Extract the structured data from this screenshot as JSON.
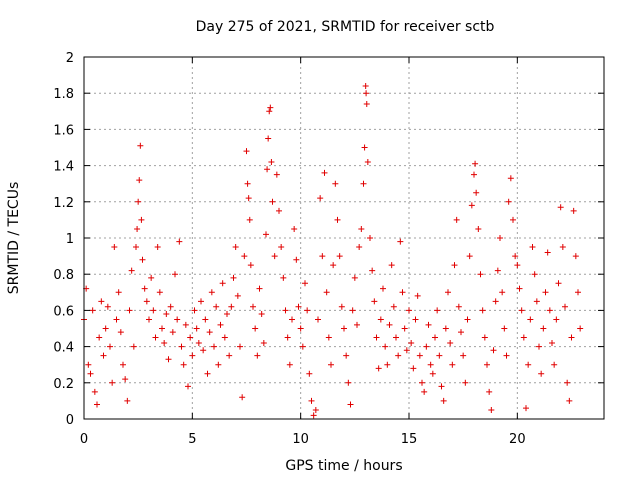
{
  "chart_data": {
    "type": "scatter",
    "title": "Day 275 of 2021, SRMTID for receiver sctb",
    "xlabel": "GPS time / hours",
    "ylabel": "SRMTID / TECUs",
    "xlim": [
      0,
      24
    ],
    "ylim": [
      0,
      2
    ],
    "xticks": [
      0,
      5,
      10,
      15,
      20
    ],
    "xtick_labels": [
      "0",
      "5",
      "10",
      "15",
      "20"
    ],
    "yticks": [
      0,
      0.2,
      0.4,
      0.6,
      0.8,
      1,
      1.2,
      1.4,
      1.6,
      1.8,
      2
    ],
    "ytick_labels": [
      "0",
      "0.2",
      "0.4",
      "0.6",
      "0.8",
      "1",
      "1.2",
      "1.4",
      "1.6",
      "1.8",
      "2"
    ],
    "grid": true,
    "marker": "+",
    "color": "#e00000",
    "series": [
      {
        "name": "sctb",
        "points": [
          [
            0.0,
            0.55
          ],
          [
            0.1,
            0.72
          ],
          [
            0.2,
            0.3
          ],
          [
            0.3,
            0.25
          ],
          [
            0.4,
            0.6
          ],
          [
            0.5,
            0.15
          ],
          [
            0.6,
            0.08
          ],
          [
            0.7,
            0.45
          ],
          [
            0.8,
            0.65
          ],
          [
            0.9,
            0.35
          ],
          [
            1.0,
            0.5
          ],
          [
            1.1,
            0.62
          ],
          [
            1.2,
            0.4
          ],
          [
            1.3,
            0.2
          ],
          [
            1.4,
            0.95
          ],
          [
            1.5,
            0.55
          ],
          [
            1.6,
            0.7
          ],
          [
            1.7,
            0.48
          ],
          [
            1.8,
            0.3
          ],
          [
            1.9,
            0.22
          ],
          [
            2.0,
            0.1
          ],
          [
            2.1,
            0.6
          ],
          [
            2.2,
            0.82
          ],
          [
            2.3,
            0.4
          ],
          [
            2.4,
            0.95
          ],
          [
            2.45,
            1.05
          ],
          [
            2.5,
            1.2
          ],
          [
            2.55,
            1.32
          ],
          [
            2.6,
            1.51
          ],
          [
            2.65,
            1.1
          ],
          [
            2.7,
            0.88
          ],
          [
            2.8,
            0.72
          ],
          [
            2.9,
            0.65
          ],
          [
            3.0,
            0.55
          ],
          [
            3.1,
            0.78
          ],
          [
            3.2,
            0.6
          ],
          [
            3.3,
            0.45
          ],
          [
            3.4,
            0.95
          ],
          [
            3.5,
            0.7
          ],
          [
            3.6,
            0.5
          ],
          [
            3.7,
            0.42
          ],
          [
            3.8,
            0.58
          ],
          [
            3.9,
            0.33
          ],
          [
            4.0,
            0.62
          ],
          [
            4.1,
            0.48
          ],
          [
            4.2,
            0.8
          ],
          [
            4.3,
            0.55
          ],
          [
            4.4,
            0.98
          ],
          [
            4.5,
            0.4
          ],
          [
            4.6,
            0.3
          ],
          [
            4.7,
            0.52
          ],
          [
            4.8,
            0.18
          ],
          [
            4.9,
            0.45
          ],
          [
            5.0,
            0.35
          ],
          [
            5.1,
            0.6
          ],
          [
            5.2,
            0.5
          ],
          [
            5.3,
            0.42
          ],
          [
            5.4,
            0.65
          ],
          [
            5.5,
            0.38
          ],
          [
            5.6,
            0.55
          ],
          [
            5.7,
            0.25
          ],
          [
            5.8,
            0.48
          ],
          [
            5.9,
            0.7
          ],
          [
            6.0,
            0.4
          ],
          [
            6.1,
            0.62
          ],
          [
            6.2,
            0.3
          ],
          [
            6.3,
            0.52
          ],
          [
            6.4,
            0.75
          ],
          [
            6.5,
            0.45
          ],
          [
            6.6,
            0.58
          ],
          [
            6.7,
            0.35
          ],
          [
            6.8,
            0.62
          ],
          [
            6.9,
            0.78
          ],
          [
            7.0,
            0.95
          ],
          [
            7.1,
            0.68
          ],
          [
            7.2,
            0.4
          ],
          [
            7.3,
            0.12
          ],
          [
            7.4,
            0.9
          ],
          [
            7.5,
            1.48
          ],
          [
            7.55,
            1.3
          ],
          [
            7.6,
            1.22
          ],
          [
            7.65,
            1.1
          ],
          [
            7.7,
            0.85
          ],
          [
            7.8,
            0.62
          ],
          [
            7.9,
            0.5
          ],
          [
            8.0,
            0.35
          ],
          [
            8.1,
            0.72
          ],
          [
            8.2,
            0.58
          ],
          [
            8.3,
            0.42
          ],
          [
            8.4,
            1.02
          ],
          [
            8.45,
            1.38
          ],
          [
            8.5,
            1.55
          ],
          [
            8.55,
            1.7
          ],
          [
            8.6,
            1.72
          ],
          [
            8.65,
            1.42
          ],
          [
            8.7,
            1.2
          ],
          [
            8.8,
            0.9
          ],
          [
            8.9,
            1.35
          ],
          [
            9.0,
            1.15
          ],
          [
            9.1,
            0.95
          ],
          [
            9.2,
            0.78
          ],
          [
            9.3,
            0.6
          ],
          [
            9.4,
            0.45
          ],
          [
            9.5,
            0.3
          ],
          [
            9.6,
            0.55
          ],
          [
            9.7,
            1.05
          ],
          [
            9.8,
            0.88
          ],
          [
            9.9,
            0.62
          ],
          [
            10.0,
            0.5
          ],
          [
            10.1,
            0.4
          ],
          [
            10.2,
            0.75
          ],
          [
            10.3,
            0.6
          ],
          [
            10.4,
            0.25
          ],
          [
            10.5,
            0.1
          ],
          [
            10.6,
            0.02
          ],
          [
            10.7,
            0.05
          ],
          [
            10.8,
            0.55
          ],
          [
            10.9,
            1.22
          ],
          [
            11.0,
            0.9
          ],
          [
            11.1,
            1.36
          ],
          [
            11.2,
            0.7
          ],
          [
            11.3,
            0.45
          ],
          [
            11.4,
            0.3
          ],
          [
            11.5,
            0.85
          ],
          [
            11.6,
            1.3
          ],
          [
            11.7,
            1.1
          ],
          [
            11.8,
            0.9
          ],
          [
            11.9,
            0.62
          ],
          [
            12.0,
            0.5
          ],
          [
            12.1,
            0.35
          ],
          [
            12.2,
            0.2
          ],
          [
            12.3,
            0.08
          ],
          [
            12.4,
            0.6
          ],
          [
            12.5,
            0.78
          ],
          [
            12.6,
            0.52
          ],
          [
            12.7,
            0.95
          ],
          [
            12.8,
            1.05
          ],
          [
            12.9,
            1.3
          ],
          [
            12.95,
            1.5
          ],
          [
            13.0,
            1.84
          ],
          [
            13.02,
            1.8
          ],
          [
            13.05,
            1.74
          ],
          [
            13.1,
            1.42
          ],
          [
            13.2,
            1.0
          ],
          [
            13.3,
            0.82
          ],
          [
            13.4,
            0.65
          ],
          [
            13.5,
            0.45
          ],
          [
            13.6,
            0.28
          ],
          [
            13.7,
            0.55
          ],
          [
            13.8,
            0.72
          ],
          [
            13.9,
            0.4
          ],
          [
            14.0,
            0.3
          ],
          [
            14.1,
            0.52
          ],
          [
            14.2,
            0.85
          ],
          [
            14.3,
            0.62
          ],
          [
            14.4,
            0.45
          ],
          [
            14.5,
            0.35
          ],
          [
            14.6,
            0.98
          ],
          [
            14.7,
            0.7
          ],
          [
            14.8,
            0.5
          ],
          [
            14.9,
            0.38
          ],
          [
            15.0,
            0.6
          ],
          [
            15.1,
            0.42
          ],
          [
            15.2,
            0.28
          ],
          [
            15.3,
            0.55
          ],
          [
            15.4,
            0.68
          ],
          [
            15.5,
            0.35
          ],
          [
            15.6,
            0.2
          ],
          [
            15.7,
            0.15
          ],
          [
            15.8,
            0.4
          ],
          [
            15.9,
            0.52
          ],
          [
            16.0,
            0.3
          ],
          [
            16.1,
            0.25
          ],
          [
            16.2,
            0.45
          ],
          [
            16.3,
            0.6
          ],
          [
            16.4,
            0.35
          ],
          [
            16.5,
            0.18
          ],
          [
            16.6,
            0.1
          ],
          [
            16.7,
            0.5
          ],
          [
            16.8,
            0.7
          ],
          [
            16.9,
            0.42
          ],
          [
            17.0,
            0.3
          ],
          [
            17.1,
            0.85
          ],
          [
            17.2,
            1.1
          ],
          [
            17.3,
            0.62
          ],
          [
            17.4,
            0.48
          ],
          [
            17.5,
            0.35
          ],
          [
            17.6,
            0.2
          ],
          [
            17.7,
            0.55
          ],
          [
            17.8,
            0.9
          ],
          [
            17.9,
            1.18
          ],
          [
            18.0,
            1.35
          ],
          [
            18.05,
            1.41
          ],
          [
            18.1,
            1.25
          ],
          [
            18.2,
            1.05
          ],
          [
            18.3,
            0.8
          ],
          [
            18.4,
            0.6
          ],
          [
            18.5,
            0.45
          ],
          [
            18.6,
            0.3
          ],
          [
            18.7,
            0.15
          ],
          [
            18.8,
            0.05
          ],
          [
            18.9,
            0.38
          ],
          [
            19.0,
            0.65
          ],
          [
            19.1,
            0.82
          ],
          [
            19.2,
            1.0
          ],
          [
            19.3,
            0.7
          ],
          [
            19.4,
            0.5
          ],
          [
            19.5,
            0.35
          ],
          [
            19.6,
            1.2
          ],
          [
            19.7,
            1.33
          ],
          [
            19.8,
            1.1
          ],
          [
            19.9,
            0.9
          ],
          [
            20.0,
            0.85
          ],
          [
            20.1,
            0.72
          ],
          [
            20.2,
            0.6
          ],
          [
            20.3,
            0.45
          ],
          [
            20.4,
            0.06
          ],
          [
            20.5,
            0.3
          ],
          [
            20.6,
            0.55
          ],
          [
            20.7,
            0.95
          ],
          [
            20.8,
            0.8
          ],
          [
            20.9,
            0.65
          ],
          [
            21.0,
            0.4
          ],
          [
            21.1,
            0.25
          ],
          [
            21.2,
            0.5
          ],
          [
            21.3,
            0.7
          ],
          [
            21.4,
            0.92
          ],
          [
            21.5,
            0.6
          ],
          [
            21.6,
            0.42
          ],
          [
            21.7,
            0.3
          ],
          [
            21.8,
            0.55
          ],
          [
            21.9,
            0.75
          ],
          [
            22.0,
            1.17
          ],
          [
            22.1,
            0.95
          ],
          [
            22.2,
            0.62
          ],
          [
            22.3,
            0.2
          ],
          [
            22.4,
            0.1
          ],
          [
            22.5,
            0.45
          ],
          [
            22.6,
            1.15
          ],
          [
            22.7,
            0.9
          ],
          [
            22.8,
            0.7
          ],
          [
            22.9,
            0.5
          ]
        ]
      }
    ]
  }
}
